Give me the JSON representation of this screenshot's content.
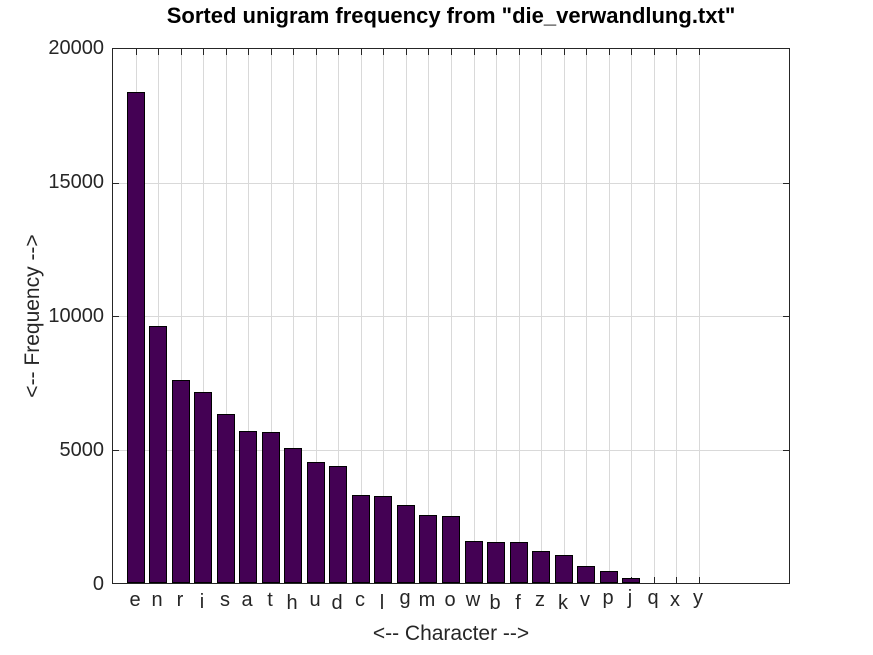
{
  "chart_data": {
    "type": "bar",
    "title": "Sorted unigram frequency from \"die_verwandlung.txt\"",
    "xlabel": "<-- Character -->",
    "ylabel": "<-- Frequency -->",
    "categories": [
      "e",
      "n",
      "r",
      "i",
      "s",
      "a",
      "t",
      "h",
      "u",
      "d",
      "c",
      "l",
      "g",
      "m",
      "o",
      "w",
      "b",
      "f",
      "z",
      "k",
      "v",
      "p",
      "j",
      "q",
      "x",
      "y"
    ],
    "values": [
      18400,
      9630,
      7610,
      7160,
      6330,
      5680,
      5670,
      5040,
      4520,
      4400,
      3280,
      3250,
      2910,
      2540,
      2500,
      1570,
      1540,
      1520,
      1180,
      1050,
      650,
      460,
      175,
      0,
      0,
      0
    ],
    "ylim": [
      0,
      20000
    ],
    "xlim": [
      0,
      30
    ],
    "yticks": [
      0,
      5000,
      10000,
      15000,
      20000
    ],
    "ytick_labels": [
      "0",
      "5000",
      "10000",
      "15000",
      "20000"
    ],
    "grid": "on",
    "legend_position": "none",
    "bar_width_units": 0.8,
    "bar_color": "#440154",
    "bar_edge_color": "#000000",
    "grid_color": "#d9d9d9",
    "axis_color": "#262626",
    "background_color": "#ffffff"
  }
}
